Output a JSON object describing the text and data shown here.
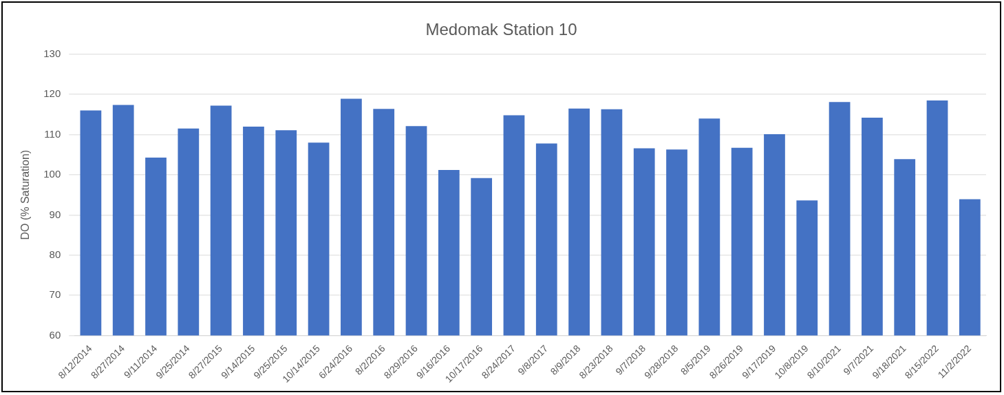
{
  "chart_data": {
    "type": "bar",
    "title": "Medomak Station 10",
    "ylabel": "DO (% Saturation)",
    "categories": [
      "8/12/2014",
      "8/27/2014",
      "9/11/2014",
      "9/25/2014",
      "8/27/2015",
      "9/14/2015",
      "9/25/2015",
      "10/14/2015",
      "6/24/2016",
      "8/2/2016",
      "8/29/2016",
      "9/16/2016",
      "10/17/2016",
      "8/24/2017",
      "9/8/2017",
      "8/9/2018",
      "8/23/2018",
      "9/7/2018",
      "9/28/2018",
      "8/5/2019",
      "8/26/2019",
      "9/17/2019",
      "10/8/2019",
      "8/10/2021",
      "9/7/2021",
      "9/18/2021",
      "8/15/2022",
      "11/2/2022"
    ],
    "values": [
      116.0,
      117.4,
      104.3,
      111.5,
      117.2,
      112.0,
      111.1,
      108.0,
      118.9,
      116.4,
      112.1,
      101.2,
      99.2,
      114.8,
      107.8,
      116.5,
      116.3,
      106.6,
      106.3,
      114.0,
      106.7,
      110.1,
      93.6,
      118.1,
      114.2,
      103.9,
      118.5,
      93.9
    ],
    "color": "#4472c4",
    "ylim": [
      60,
      130
    ],
    "yticks": [
      60,
      70,
      80,
      90,
      100,
      110,
      120,
      130
    ],
    "grid": "y"
  }
}
